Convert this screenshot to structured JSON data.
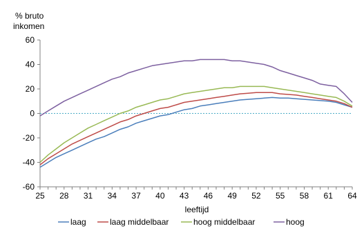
{
  "chart_data": {
    "type": "line",
    "ylabel_line1": "% bruto",
    "ylabel_line2": "inkomen",
    "xlabel": "leeftijd",
    "ylim": [
      -60,
      60
    ],
    "yticks": [
      -60,
      -40,
      -20,
      0,
      20,
      40,
      60
    ],
    "xlim": [
      25,
      64
    ],
    "xticks": [
      25,
      28,
      31,
      34,
      37,
      40,
      43,
      46,
      49,
      52,
      55,
      58,
      61,
      64
    ],
    "zero_line": true,
    "grid": false,
    "legend_position": "bottom",
    "x": [
      25,
      26,
      27,
      28,
      29,
      30,
      31,
      32,
      33,
      34,
      35,
      36,
      37,
      38,
      39,
      40,
      41,
      42,
      43,
      44,
      45,
      46,
      47,
      48,
      49,
      50,
      51,
      52,
      53,
      54,
      55,
      56,
      57,
      58,
      59,
      60,
      61,
      62,
      63,
      64
    ],
    "series": [
      {
        "name": "laag",
        "color": "#4a7ebb",
        "values": [
          -44,
          -40,
          -36,
          -33,
          -30,
          -27,
          -24,
          -21,
          -19,
          -16,
          -13,
          -11,
          -8,
          -6,
          -4,
          -2,
          -1,
          1,
          3,
          4,
          6,
          7,
          8,
          9,
          10,
          11,
          11.5,
          12,
          12.5,
          13,
          12.5,
          12.5,
          12,
          11.5,
          11,
          10.5,
          10,
          9,
          7,
          5
        ]
      },
      {
        "name": "laag middelbaar",
        "color": "#be4b48",
        "values": [
          -42,
          -37,
          -33,
          -29,
          -25,
          -22,
          -19,
          -16,
          -13,
          -10,
          -7,
          -5,
          -2,
          0,
          2,
          4,
          5,
          7,
          9,
          10,
          11,
          12,
          13,
          14,
          15,
          16,
          16.5,
          17,
          17,
          17,
          16,
          15.5,
          15,
          14,
          13,
          12,
          11,
          10,
          8,
          5
        ]
      },
      {
        "name": "hoog middelbaar",
        "color": "#98b954",
        "values": [
          -40,
          -34,
          -29,
          -24,
          -20,
          -16,
          -12,
          -9,
          -6,
          -3,
          0,
          2,
          5,
          7,
          9,
          11,
          12,
          14,
          16,
          17,
          18,
          19,
          20,
          21,
          21,
          22,
          22,
          22,
          22,
          21,
          20,
          19,
          18,
          17,
          16,
          15,
          14,
          13,
          10,
          6
        ]
      },
      {
        "name": "hoog",
        "color": "#7d60a0",
        "values": [
          -2,
          2,
          6,
          10,
          13,
          16,
          19,
          22,
          25,
          28,
          30,
          33,
          35,
          37,
          39,
          40,
          41,
          42,
          43,
          43,
          44,
          44,
          44,
          44,
          43,
          43,
          42,
          41,
          40,
          38,
          35,
          33,
          31,
          29,
          27,
          24,
          23,
          22,
          16,
          9
        ]
      }
    ]
  }
}
